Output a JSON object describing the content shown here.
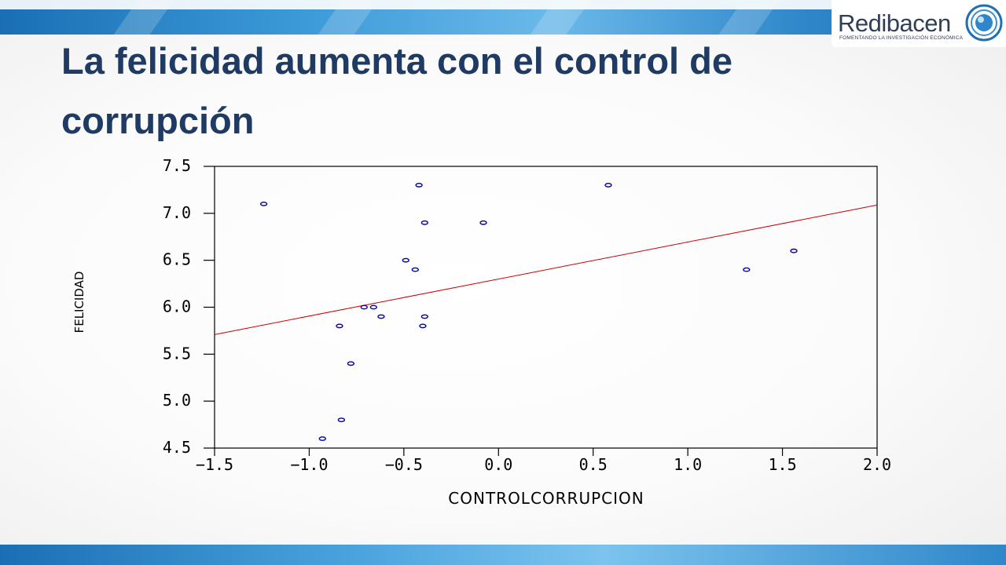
{
  "slide": {
    "title": "La felicidad aumenta con el control de corrupción"
  },
  "logo": {
    "name": "Redibacen",
    "tagline": "FOMENTANDO LA INVESTIGACIÓN ECONÓMICA",
    "icon": "globe-icon"
  },
  "colors": {
    "title": "#1f3b63",
    "band_blue": "#2f87c9",
    "point": "#0000aa",
    "fit_line": "#cc0000"
  },
  "chart_data": {
    "type": "scatter",
    "title": "",
    "xlabel": "CONTROLCORRUPCION",
    "ylabel": "FELICIDAD",
    "xlim": [
      -1.5,
      2.0
    ],
    "ylim": [
      4.5,
      7.5
    ],
    "xticks": [
      "−1.5",
      "−1.0",
      "−0.5",
      "0.0",
      "0.5",
      "1.0",
      "1.5",
      "2.0"
    ],
    "xtick_values": [
      -1.5,
      -1.0,
      -0.5,
      0.0,
      0.5,
      1.0,
      1.5,
      2.0
    ],
    "yticks": [
      "7.5",
      "7.0",
      "6.5",
      "6.0",
      "5.5",
      "5.0",
      "4.5"
    ],
    "ytick_values": [
      7.5,
      7.0,
      6.5,
      6.0,
      5.5,
      5.0,
      4.5
    ],
    "grid": false,
    "legend": "none",
    "series": [
      {
        "marker": "open-circle",
        "points": [
          {
            "x": -1.24,
            "y": 7.1
          },
          {
            "x": -0.42,
            "y": 7.3
          },
          {
            "x": 0.58,
            "y": 7.3
          },
          {
            "x": -0.39,
            "y": 6.9
          },
          {
            "x": -0.08,
            "y": 6.9
          },
          {
            "x": -0.49,
            "y": 6.5
          },
          {
            "x": -0.44,
            "y": 6.4
          },
          {
            "x": 1.56,
            "y": 6.6
          },
          {
            "x": 1.31,
            "y": 6.4
          },
          {
            "x": -0.71,
            "y": 6.0
          },
          {
            "x": -0.66,
            "y": 6.0
          },
          {
            "x": -0.62,
            "y": 5.9
          },
          {
            "x": -0.39,
            "y": 5.9
          },
          {
            "x": -0.84,
            "y": 5.8
          },
          {
            "x": -0.4,
            "y": 5.8
          },
          {
            "x": -0.78,
            "y": 5.4
          },
          {
            "x": -0.83,
            "y": 4.8
          },
          {
            "x": -0.93,
            "y": 4.6
          }
        ]
      }
    ],
    "fit_line": {
      "type": "linear",
      "intercept": 6.3,
      "slope": 0.394
    }
  }
}
